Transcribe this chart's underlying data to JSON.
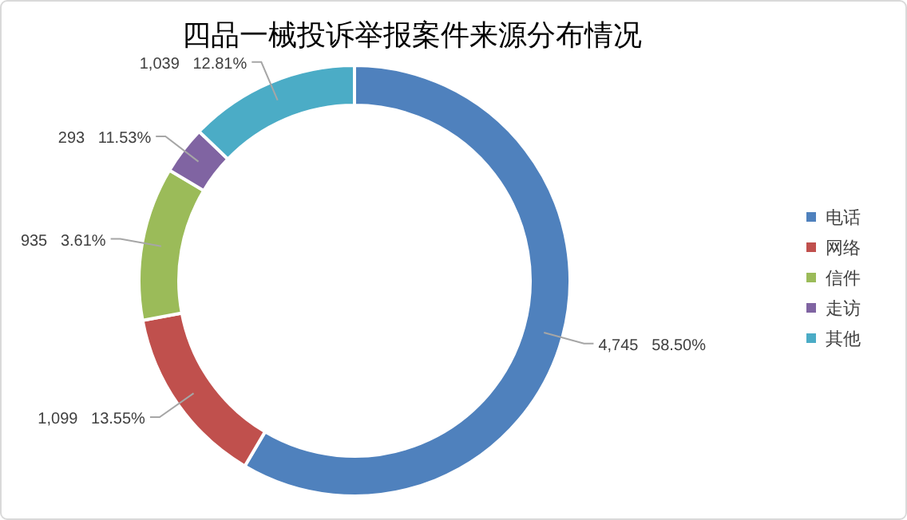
{
  "chart_data": {
    "type": "donut",
    "title": "四品一械投诉举报案件来源分布情况",
    "categories": [
      "电话",
      "网络",
      "信件",
      "走访",
      "其他"
    ],
    "values": [
      4745,
      1099,
      935,
      293,
      1039
    ],
    "colors": [
      "#4f81bd",
      "#c0504d",
      "#9bbb59",
      "#8064a2",
      "#4bacc6"
    ],
    "value_labels": [
      "4,745   58.50%",
      "1,099   13.55%",
      "935   3.61%",
      "293   11.53%",
      "1,039   12.81%"
    ],
    "legend": "right"
  }
}
